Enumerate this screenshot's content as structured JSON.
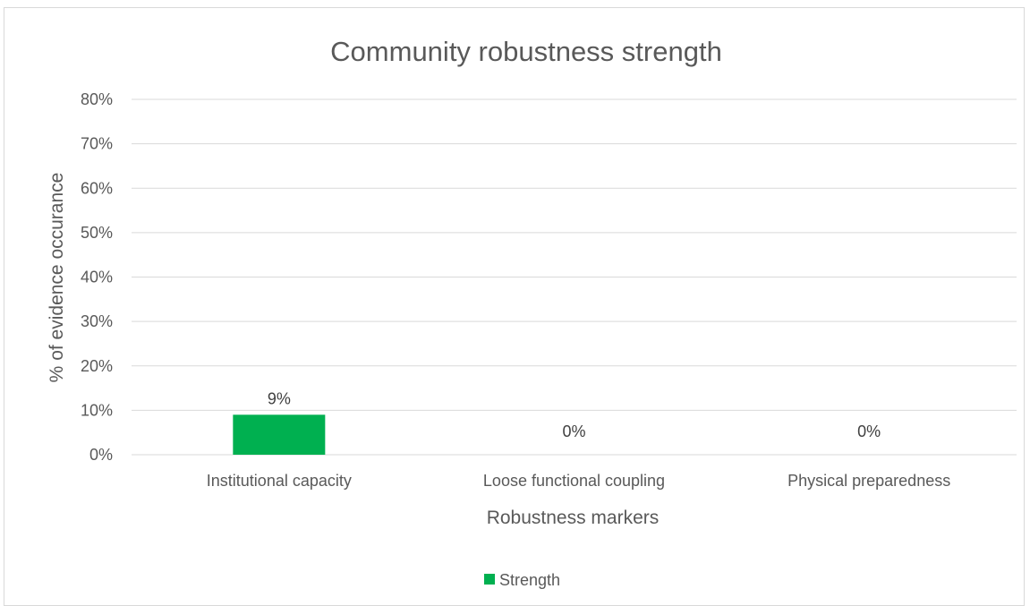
{
  "chart_data": {
    "type": "bar",
    "title": "Community robustness strength",
    "xlabel": "Robustness markers",
    "ylabel": "% of evidence occurance",
    "categories": [
      "Institutional capacity",
      "Loose functional coupling",
      "Physical preparedness"
    ],
    "series": [
      {
        "name": "Strength",
        "values": [
          9,
          0,
          0
        ],
        "data_labels": [
          "9%",
          "0%",
          "0%"
        ],
        "color": "#00b050"
      }
    ],
    "ylim": [
      0,
      80
    ],
    "yticks": [
      0,
      10,
      20,
      30,
      40,
      50,
      60,
      70,
      80
    ],
    "ytick_labels": [
      "0%",
      "10%",
      "20%",
      "30%",
      "40%",
      "50%",
      "60%",
      "70%",
      "80%"
    ],
    "grid": true,
    "legend_position": "bottom",
    "colors": {
      "bar": "#00b050",
      "gridline": "#d9d9d9",
      "text": "#595959"
    }
  }
}
